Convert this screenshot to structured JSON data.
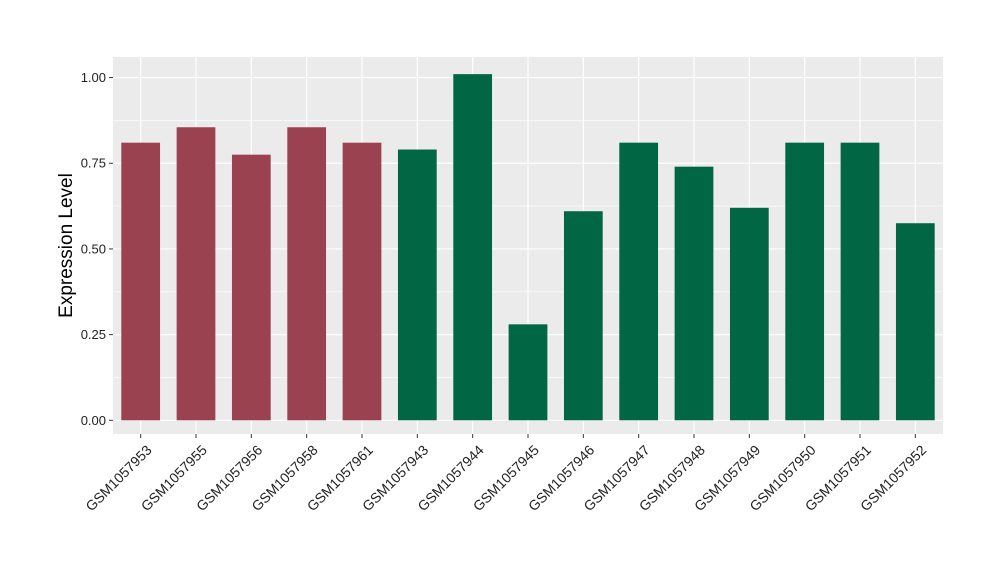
{
  "chart_data": {
    "type": "bar",
    "ylabel": "Expression Level",
    "xlabel": "",
    "ylim": [
      -0.04,
      1.06
    ],
    "yticks": [
      0.0,
      0.25,
      0.5,
      0.75,
      1.0
    ],
    "ytick_labels": [
      "0.00",
      "0.25",
      "0.50",
      "0.75",
      "1.00"
    ],
    "grid": true,
    "categories": [
      "GSM1057953",
      "GSM1057955",
      "GSM1057956",
      "GSM1057958",
      "GSM1057961",
      "GSM1057943",
      "GSM1057944",
      "GSM1057945",
      "GSM1057946",
      "GSM1057947",
      "GSM1057948",
      "GSM1057949",
      "GSM1057950",
      "GSM1057951",
      "GSM1057952"
    ],
    "values": [
      0.81,
      0.855,
      0.775,
      0.855,
      0.81,
      0.79,
      1.01,
      0.28,
      0.61,
      0.81,
      0.74,
      0.62,
      0.81,
      0.81,
      0.575
    ],
    "colors": [
      "#9b4250",
      "#9b4250",
      "#9b4250",
      "#9b4250",
      "#9b4250",
      "#006644",
      "#006644",
      "#006644",
      "#006644",
      "#006644",
      "#006644",
      "#006644",
      "#006644",
      "#006644",
      "#006644"
    ]
  },
  "style": {
    "panel_bg": "#ebebeb",
    "grid_color": "#ffffff"
  }
}
